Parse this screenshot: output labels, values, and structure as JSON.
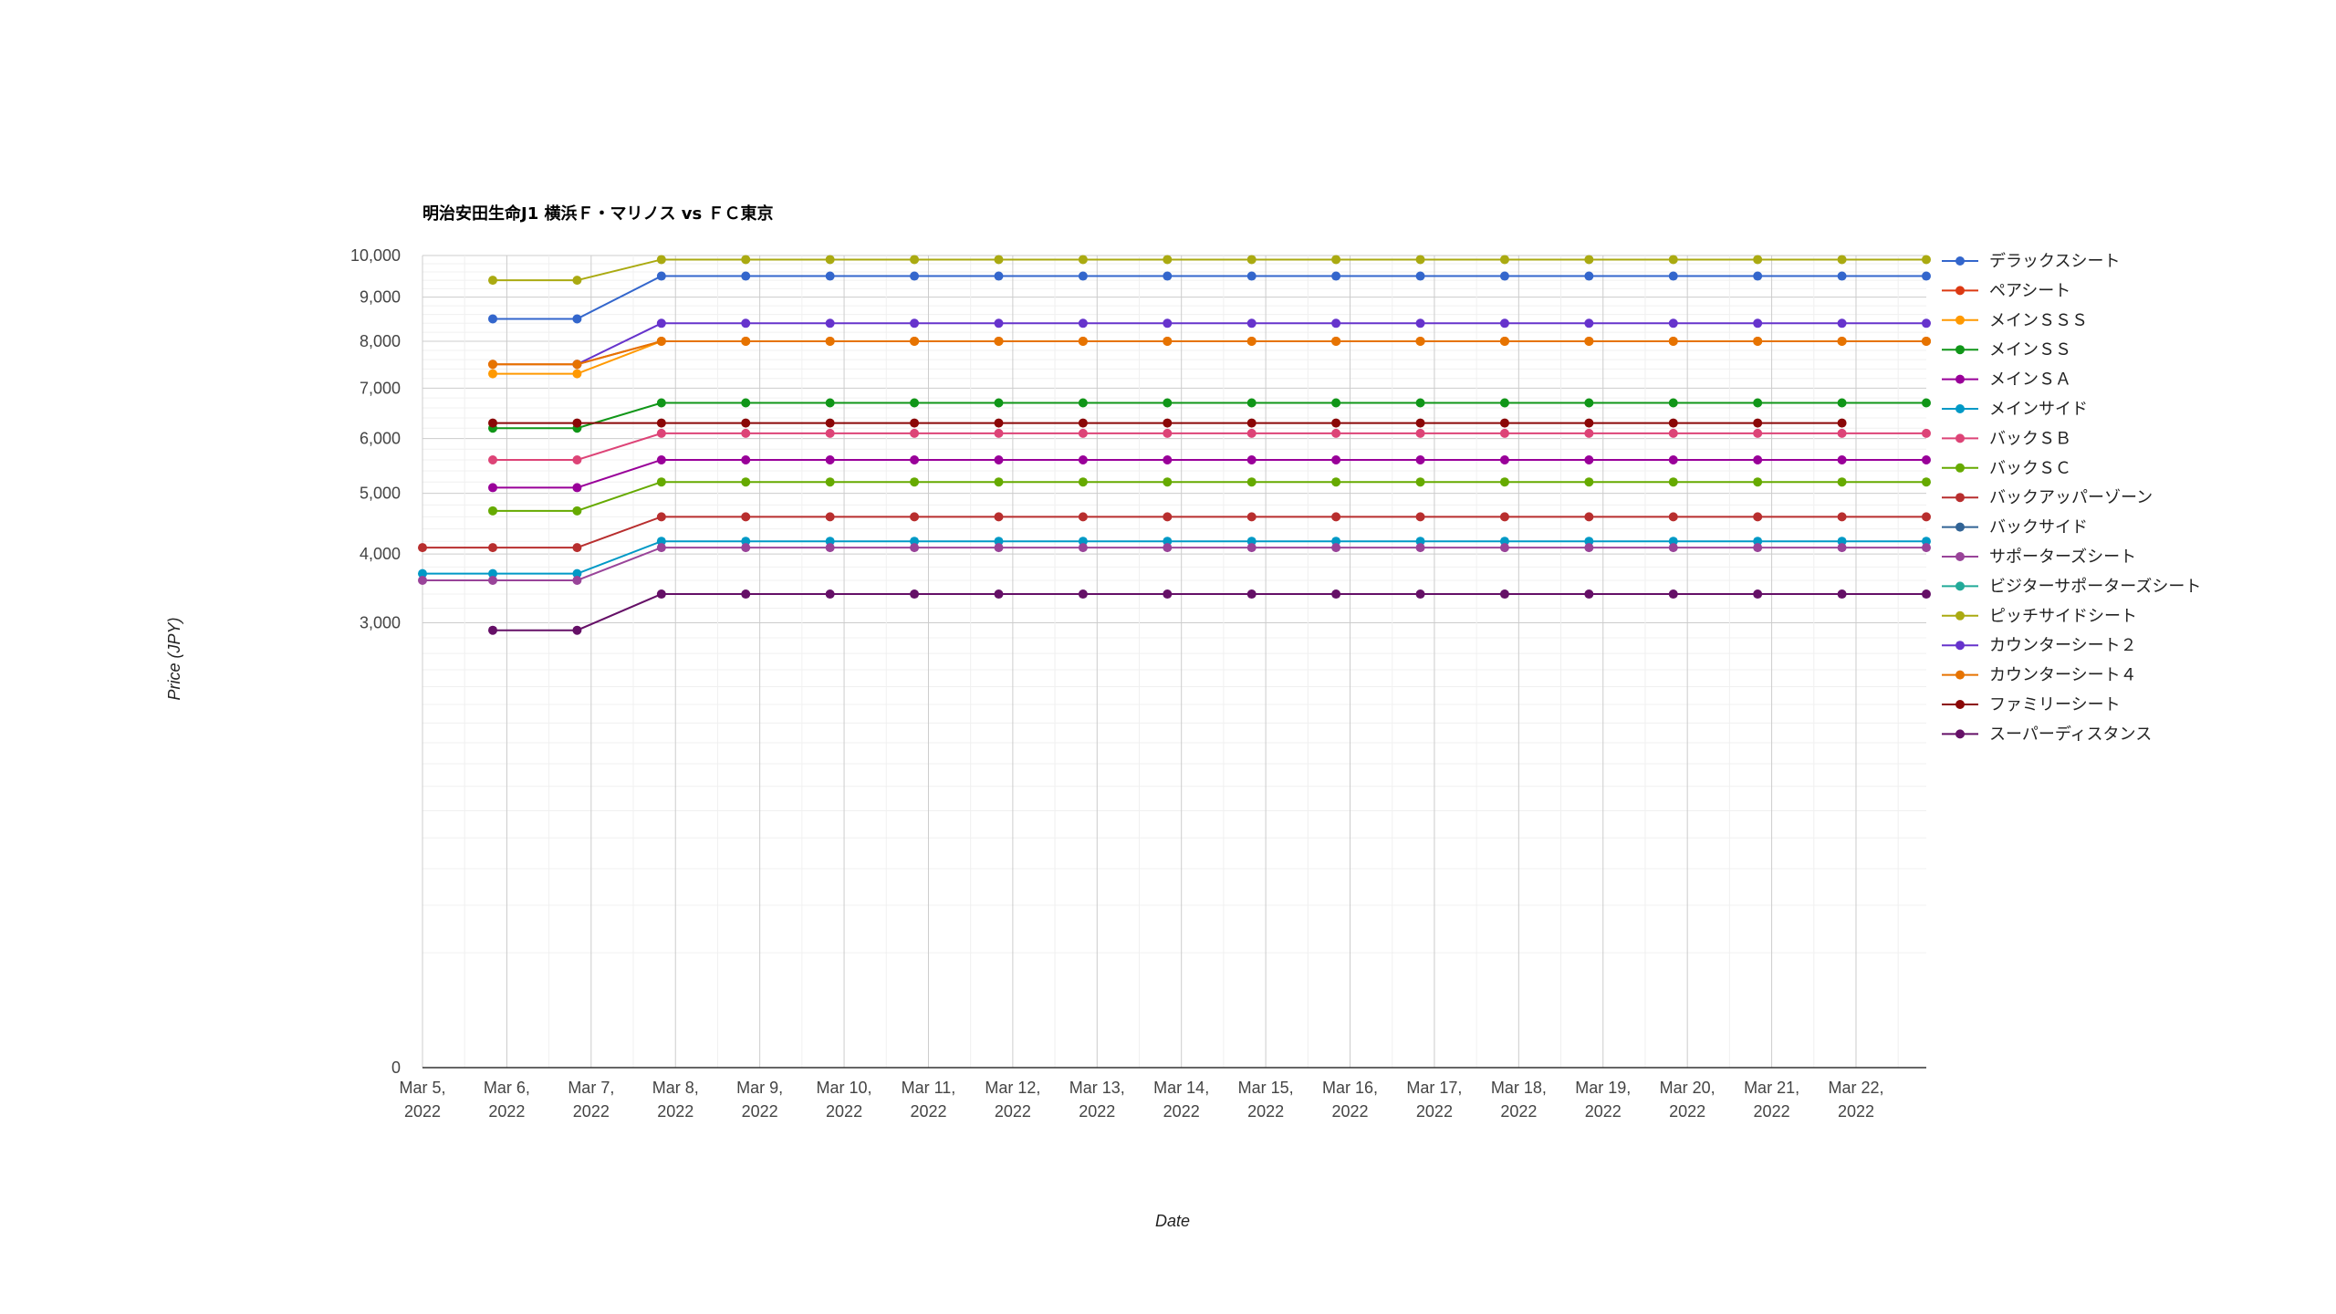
{
  "chart_data": {
    "type": "line",
    "title": "明治安田生命J1 横浜Ｆ・マリノス vs ＦＣ東京",
    "xlabel": "Date",
    "ylabel": "Price (JPY)",
    "y_scale": "sqrt",
    "ylim": [
      0,
      10000
    ],
    "y_ticks": [
      0,
      3000,
      4000,
      5000,
      6000,
      7000,
      8000,
      9000,
      10000
    ],
    "y_tick_labels": [
      "0",
      "3,000",
      "4,000",
      "5,000",
      "6,000",
      "7,000",
      "8,000",
      "9,000",
      "10,000"
    ],
    "grid": true,
    "legend_position": "right",
    "xlim": [
      "2022-03-05",
      "2022-03-22T20:00"
    ],
    "x_ticks": [
      {
        "date": "2022-03-05",
        "line1": "Mar 5,",
        "line2": "2022"
      },
      {
        "date": "2022-03-06",
        "line1": "Mar 6,",
        "line2": "2022"
      },
      {
        "date": "2022-03-07",
        "line1": "Mar 7,",
        "line2": "2022"
      },
      {
        "date": "2022-03-08",
        "line1": "Mar 8,",
        "line2": "2022"
      },
      {
        "date": "2022-03-09",
        "line1": "Mar 9,",
        "line2": "2022"
      },
      {
        "date": "2022-03-10",
        "line1": "Mar 10,",
        "line2": "2022"
      },
      {
        "date": "2022-03-11",
        "line1": "Mar 11,",
        "line2": "2022"
      },
      {
        "date": "2022-03-12",
        "line1": "Mar 12,",
        "line2": "2022"
      },
      {
        "date": "2022-03-13",
        "line1": "Mar 13,",
        "line2": "2022"
      },
      {
        "date": "2022-03-14",
        "line1": "Mar 14,",
        "line2": "2022"
      },
      {
        "date": "2022-03-15",
        "line1": "Mar 15,",
        "line2": "2022"
      },
      {
        "date": "2022-03-16",
        "line1": "Mar 16,",
        "line2": "2022"
      },
      {
        "date": "2022-03-17",
        "line1": "Mar 17,",
        "line2": "2022"
      },
      {
        "date": "2022-03-18",
        "line1": "Mar 18,",
        "line2": "2022"
      },
      {
        "date": "2022-03-19",
        "line1": "Mar 19,",
        "line2": "2022"
      },
      {
        "date": "2022-03-20",
        "line1": "Mar 20,",
        "line2": "2022"
      },
      {
        "date": "2022-03-21",
        "line1": "Mar 21,",
        "line2": "2022"
      },
      {
        "date": "2022-03-22",
        "line1": "Mar 22,",
        "line2": "2022"
      }
    ],
    "x": [
      "2022-03-05T00:00",
      "2022-03-05T20:00",
      "2022-03-06T20:00",
      "2022-03-07T20:00",
      "2022-03-08T20:00",
      "2022-03-09T20:00",
      "2022-03-10T20:00",
      "2022-03-11T20:00",
      "2022-03-12T20:00",
      "2022-03-13T20:00",
      "2022-03-14T20:00",
      "2022-03-15T20:00",
      "2022-03-16T20:00",
      "2022-03-17T20:00",
      "2022-03-18T20:00",
      "2022-03-19T20:00",
      "2022-03-20T20:00",
      "2022-03-21T20:00",
      "2022-03-22T20:00"
    ],
    "series": [
      {
        "name": "デラックスシート",
        "color": "#3366cc",
        "values": [
          null,
          8500,
          8500,
          9500,
          9500,
          9500,
          9500,
          9500,
          9500,
          9500,
          9500,
          9500,
          9500,
          9500,
          9500,
          9500,
          9500,
          9500,
          9500
        ]
      },
      {
        "name": "ペアシート",
        "color": "#dc3912",
        "values": [
          null,
          7500,
          7500,
          8000,
          8000,
          8000,
          8000,
          8000,
          8000,
          8000,
          8000,
          8000,
          8000,
          8000,
          8000,
          8000,
          8000,
          8000,
          8000
        ]
      },
      {
        "name": "メインＳＳＳ",
        "color": "#ff9900",
        "values": [
          null,
          7300,
          7300,
          8000,
          8000,
          8000,
          8000,
          8000,
          8000,
          8000,
          8000,
          8000,
          8000,
          8000,
          8000,
          8000,
          8000,
          8000,
          8000
        ]
      },
      {
        "name": "メインＳＳ",
        "color": "#109618",
        "values": [
          null,
          6200,
          6200,
          6700,
          6700,
          6700,
          6700,
          6700,
          6700,
          6700,
          6700,
          6700,
          6700,
          6700,
          6700,
          6700,
          6700,
          6700,
          6700
        ]
      },
      {
        "name": "メインＳＡ",
        "color": "#990099",
        "values": [
          null,
          5100,
          5100,
          5600,
          5600,
          5600,
          5600,
          5600,
          5600,
          5600,
          5600,
          5600,
          5600,
          5600,
          5600,
          5600,
          5600,
          5600,
          5600
        ]
      },
      {
        "name": "メインサイド",
        "color": "#0099c6",
        "values": [
          3700,
          3700,
          3700,
          4200,
          4200,
          4200,
          4200,
          4200,
          4200,
          4200,
          4200,
          4200,
          4200,
          4200,
          4200,
          4200,
          4200,
          4200,
          4200
        ]
      },
      {
        "name": "バックＳＢ",
        "color": "#dd4477",
        "values": [
          null,
          5600,
          5600,
          6100,
          6100,
          6100,
          6100,
          6100,
          6100,
          6100,
          6100,
          6100,
          6100,
          6100,
          6100,
          6100,
          6100,
          6100,
          6100
        ]
      },
      {
        "name": "バックＳＣ",
        "color": "#66aa00",
        "values": [
          null,
          4700,
          4700,
          5200,
          5200,
          5200,
          5200,
          5200,
          5200,
          5200,
          5200,
          5200,
          5200,
          5200,
          5200,
          5200,
          5200,
          5200,
          5200
        ]
      },
      {
        "name": "バックアッパーゾーン",
        "color": "#b82e2e",
        "values": [
          4100,
          4100,
          4100,
          4600,
          4600,
          4600,
          4600,
          4600,
          4600,
          4600,
          4600,
          4600,
          4600,
          4600,
          4600,
          4600,
          4600,
          4600,
          4600
        ]
      },
      {
        "name": "バックサイド",
        "color": "#316395",
        "values": [
          null,
          null,
          null,
          null,
          null,
          null,
          null,
          null,
          null,
          null,
          null,
          null,
          null,
          null,
          null,
          null,
          null,
          null,
          null
        ]
      },
      {
        "name": "サポーターズシート",
        "color": "#994499",
        "values": [
          3600,
          3600,
          3600,
          4100,
          4100,
          4100,
          4100,
          4100,
          4100,
          4100,
          4100,
          4100,
          4100,
          4100,
          4100,
          4100,
          4100,
          4100,
          4100
        ]
      },
      {
        "name": "ビジターサポーターズシート",
        "color": "#22aa99",
        "values": [
          null,
          null,
          null,
          null,
          null,
          null,
          null,
          null,
          null,
          null,
          null,
          null,
          null,
          null,
          null,
          null,
          null,
          null,
          null
        ]
      },
      {
        "name": "ピッチサイドシート",
        "color": "#aaaa11",
        "values": [
          null,
          9400,
          9400,
          9900,
          9900,
          9900,
          9900,
          9900,
          9900,
          9900,
          9900,
          9900,
          9900,
          9900,
          9900,
          9900,
          9900,
          9900,
          9900
        ]
      },
      {
        "name": "カウンターシート２",
        "color": "#6633cc",
        "values": [
          null,
          null,
          7500,
          8400,
          8400,
          8400,
          8400,
          8400,
          8400,
          8400,
          8400,
          8400,
          8400,
          8400,
          8400,
          8400,
          8400,
          8400,
          8400
        ]
      },
      {
        "name": "カウンターシート４",
        "color": "#e67300",
        "values": [
          null,
          7500,
          7500,
          8000,
          8000,
          8000,
          8000,
          8000,
          8000,
          8000,
          8000,
          8000,
          8000,
          8000,
          8000,
          8000,
          8000,
          8000,
          8000
        ]
      },
      {
        "name": "ファミリーシート",
        "color": "#8b0707",
        "values": [
          null,
          6300,
          6300,
          6300,
          6300,
          6300,
          6300,
          6300,
          6300,
          6300,
          6300,
          6300,
          6300,
          6300,
          6300,
          6300,
          6300,
          6300,
          null
        ]
      },
      {
        "name": "スーパーディスタンス",
        "color": "#651067",
        "values": [
          null,
          2900,
          2900,
          3400,
          3400,
          3400,
          3400,
          3400,
          3400,
          3400,
          3400,
          3400,
          3400,
          3400,
          3400,
          3400,
          3400,
          3400,
          3400
        ]
      }
    ]
  }
}
